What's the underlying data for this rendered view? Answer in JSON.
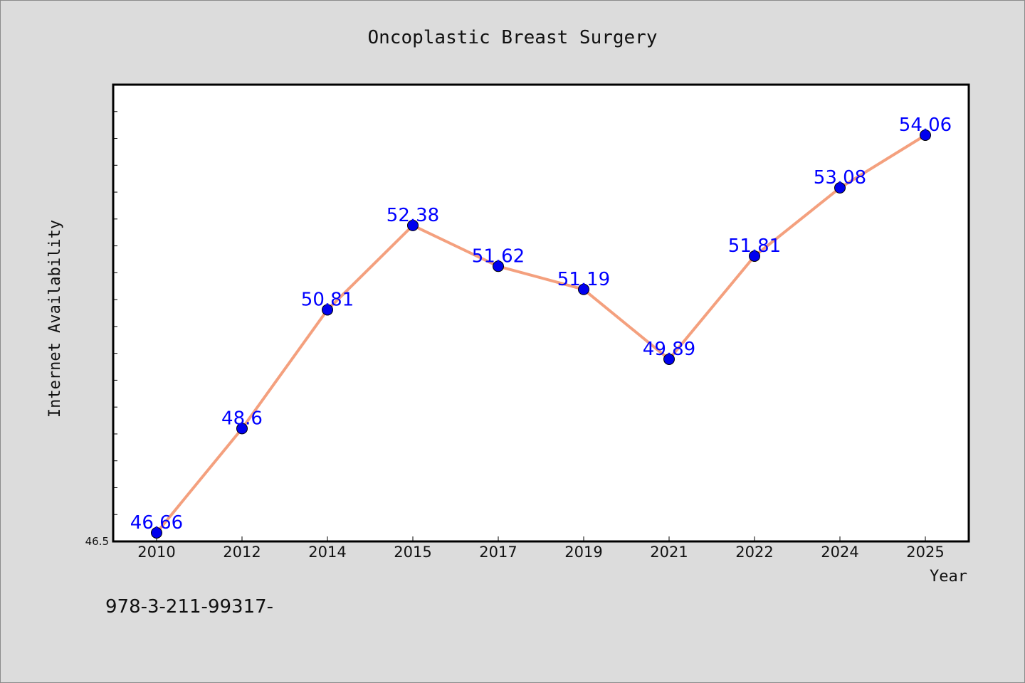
{
  "footer": {
    "text": "978-3-211-99317-"
  },
  "chart_data": {
    "type": "line",
    "title": "Oncoplastic Breast Surgery",
    "xlabel": "Year",
    "ylabel": "Internet Availability",
    "categories": [
      "2010",
      "2012",
      "2014",
      "2015",
      "2017",
      "2019",
      "2021",
      "2022",
      "2024",
      "2025"
    ],
    "values": [
      46.66,
      48.6,
      50.81,
      52.38,
      51.62,
      51.19,
      49.89,
      51.81,
      53.08,
      54.06
    ],
    "data_labels": [
      "46.66",
      "48.6",
      "50.81",
      "52.38",
      "51.62",
      "51.19",
      "49.89",
      "51.81",
      "53.08",
      "54.06"
    ],
    "y_axis_label_shown": "46.5",
    "ylim": [
      46.5,
      55.0
    ],
    "grid": false,
    "colors": {
      "line": "#f4a07e",
      "marker": "#0000ee",
      "data_label": "#0000ff",
      "plot_background": "#ffffff",
      "page_background": "#dcdcdc"
    }
  }
}
